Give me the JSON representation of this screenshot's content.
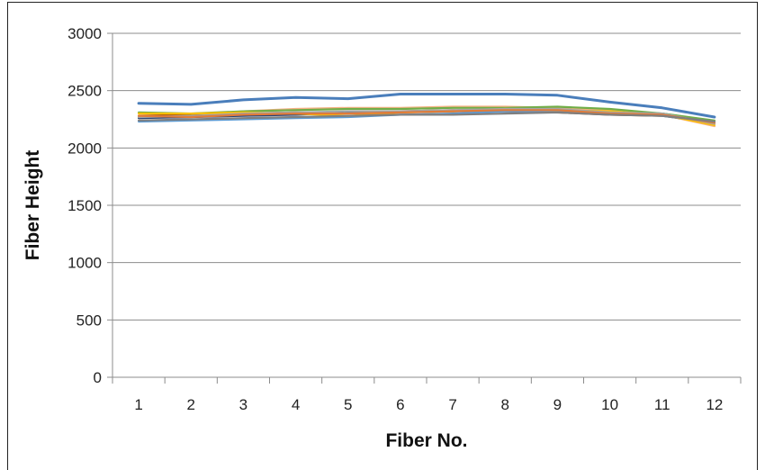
{
  "chart_data": {
    "type": "line",
    "title": "",
    "xlabel": "Fiber No.",
    "ylabel": "Fiber Height",
    "x": [
      1,
      2,
      3,
      4,
      5,
      6,
      7,
      8,
      9,
      10,
      11,
      12
    ],
    "ylim": [
      0,
      3000
    ],
    "yticks": [
      0,
      500,
      1000,
      1500,
      2000,
      2500,
      3000
    ],
    "grid": true,
    "legend": "none",
    "series": [
      {
        "color": "#4a7ebb",
        "values": [
          2390,
          2380,
          2420,
          2440,
          2430,
          2470,
          2470,
          2470,
          2460,
          2400,
          2350,
          2270
        ]
      },
      {
        "color": "#7f7f7f",
        "values": [
          2240,
          2250,
          2260,
          2270,
          2280,
          2290,
          2290,
          2300,
          2310,
          2290,
          2280,
          2230
        ]
      },
      {
        "color": "#e07b39",
        "values": [
          2280,
          2270,
          2290,
          2300,
          2300,
          2310,
          2320,
          2330,
          2330,
          2300,
          2290,
          2220
        ]
      },
      {
        "color": "#a5a5a5",
        "values": [
          2270,
          2280,
          2300,
          2310,
          2320,
          2320,
          2330,
          2340,
          2340,
          2310,
          2300,
          2210
        ]
      },
      {
        "color": "#ffc000",
        "values": [
          2300,
          2300,
          2310,
          2300,
          2280,
          2310,
          2320,
          2340,
          2330,
          2320,
          2290,
          2200
        ]
      },
      {
        "color": "#70ad47",
        "values": [
          2310,
          2300,
          2320,
          2330,
          2340,
          2340,
          2350,
          2350,
          2360,
          2340,
          2300,
          2240
        ]
      },
      {
        "color": "#5b9bd5",
        "values": [
          2230,
          2240,
          2250,
          2260,
          2270,
          2290,
          2300,
          2320,
          2320,
          2300,
          2280,
          2220
        ]
      },
      {
        "color": "#264478",
        "values": [
          2260,
          2270,
          2280,
          2290,
          2310,
          2320,
          2320,
          2330,
          2320,
          2310,
          2300,
          2230
        ]
      },
      {
        "color": "#9e480e",
        "values": [
          2280,
          2290,
          2300,
          2310,
          2310,
          2320,
          2330,
          2320,
          2310,
          2290,
          2280,
          2220
        ]
      },
      {
        "color": "#f4b183",
        "values": [
          2260,
          2280,
          2320,
          2340,
          2350,
          2350,
          2360,
          2360,
          2350,
          2330,
          2290,
          2190
        ]
      }
    ]
  }
}
